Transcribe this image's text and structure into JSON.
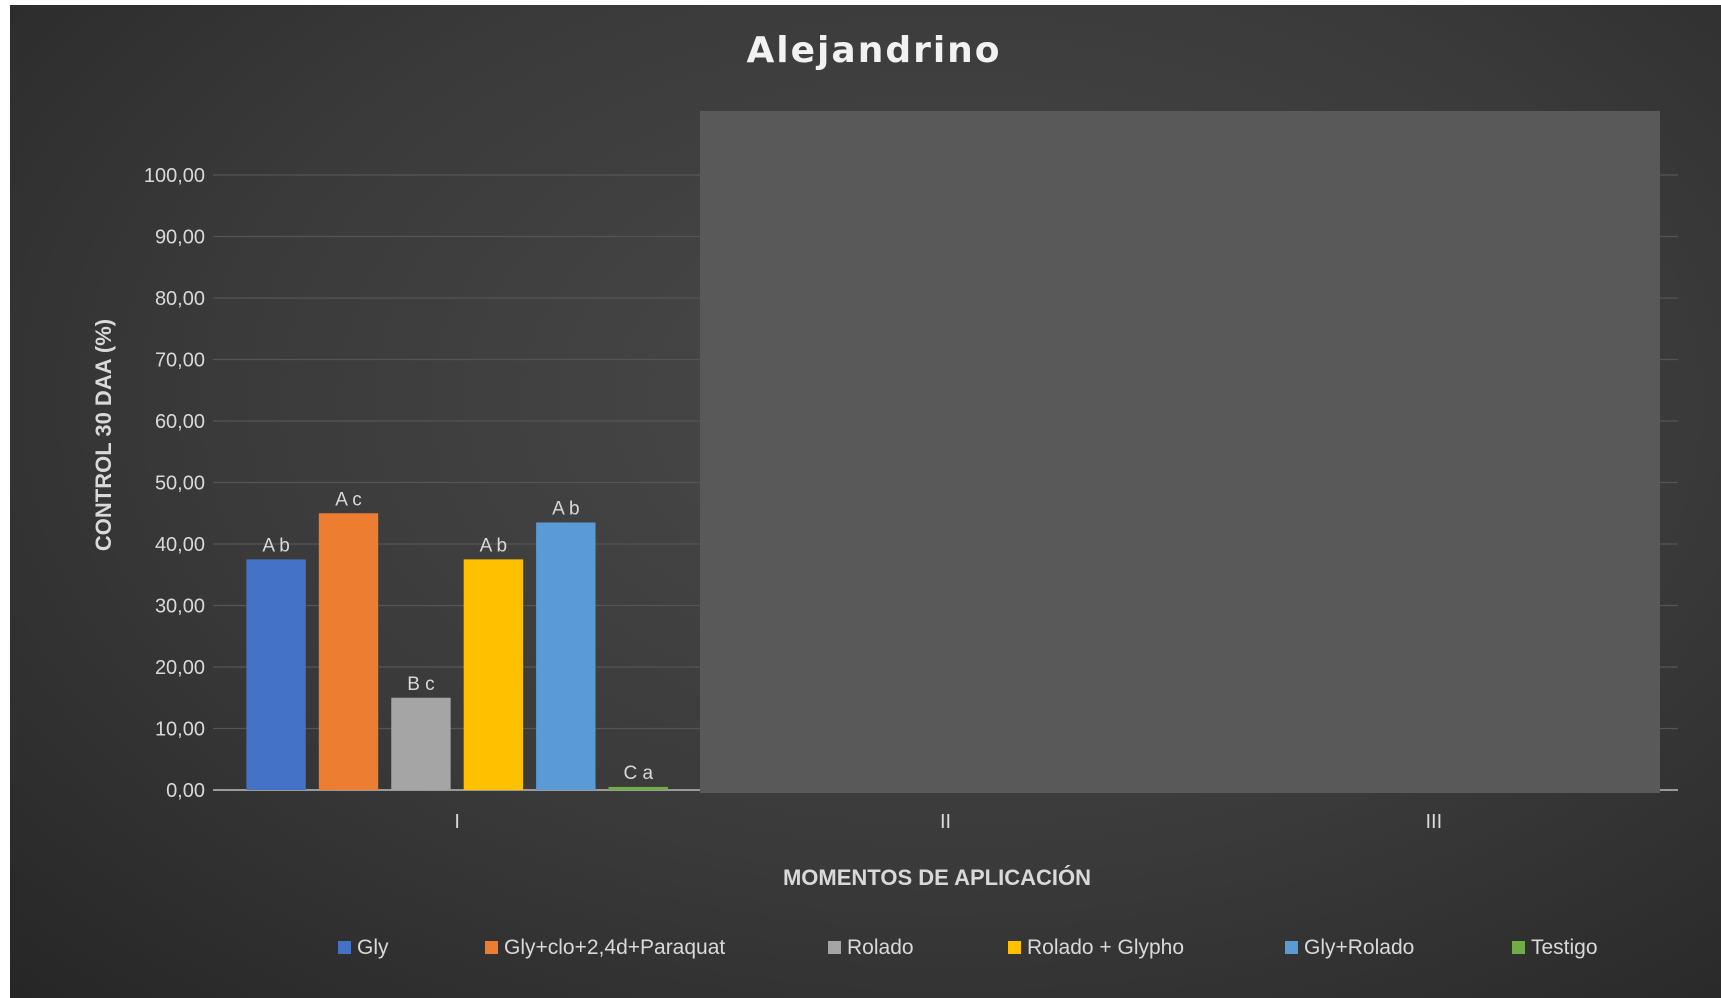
{
  "chart_data": {
    "type": "bar",
    "title": "Alejandrino",
    "xlabel": "MOMENTOS DE APLICACIÓN",
    "ylabel": "CONTROL 30 DAA (%)",
    "ylim": [
      0,
      100
    ],
    "ytick_labels": [
      "0,00",
      "10,00",
      "20,00",
      "30,00",
      "40,00",
      "50,00",
      "60,00",
      "70,00",
      "80,00",
      "90,00",
      "100,00"
    ],
    "categories": [
      "I",
      "II",
      "III"
    ],
    "series": [
      {
        "name": "Gly",
        "color": "#4472c4",
        "values": [
          37.5,
          null,
          null
        ],
        "labels": [
          "A b",
          "",
          ""
        ]
      },
      {
        "name": "Gly+clo+2,4d+Paraquat",
        "color": "#ed7d31",
        "values": [
          45,
          null,
          null
        ],
        "labels": [
          "A c",
          "",
          ""
        ]
      },
      {
        "name": "Rolado",
        "color": "#a5a5a5",
        "values": [
          15,
          null,
          null
        ],
        "labels": [
          "B c",
          "",
          ""
        ]
      },
      {
        "name": "Rolado + Glypho",
        "color": "#ffc000",
        "values": [
          37.5,
          null,
          null
        ],
        "labels": [
          "A b",
          "",
          ""
        ]
      },
      {
        "name": "Gly+Rolado",
        "color": "#5b9bd5",
        "values": [
          43.5,
          null,
          null
        ],
        "labels": [
          "A b",
          "",
          ""
        ]
      },
      {
        "name": "Testigo",
        "color": "#70ad47",
        "values": [
          0.5,
          null,
          0.5
        ],
        "labels": [
          "C a",
          "",
          ""
        ]
      }
    ],
    "grid": true,
    "legend_position": "bottom",
    "overlay_color": "#595959"
  }
}
